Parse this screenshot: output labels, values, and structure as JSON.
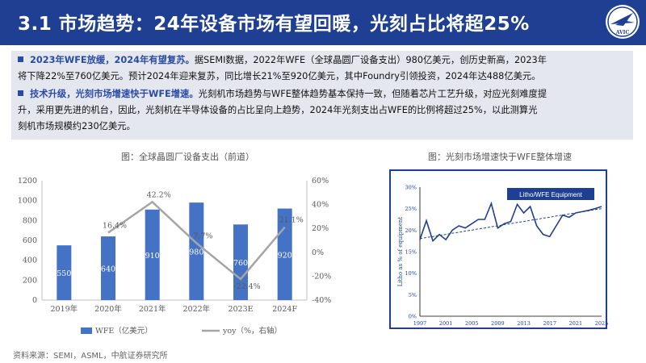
{
  "header": {
    "title": "3.1 市场趋势：24年设备市场有望回暖，光刻占比将超25%",
    "logo_text": "AVIC"
  },
  "bullets": [
    {
      "highlight": "2023年WFE放缓，2024年有望复苏。",
      "line1": "据SEMI数据，2022年WFE（全球晶圆厂设备支出）980亿美元，创历史新高，2023年",
      "line2": "将下降22%至760亿美元。预计2024年迎来复苏，同比增长21%至920亿美元，其中Foundry引领投资，2024年达488亿美元。"
    },
    {
      "highlight": "技术升级，光刻市场增速快于WFE增速。",
      "line1": "光刻机市场趋势与WFE整体趋势基本保持一致，但随着芯片工艺升级，对应光刻难度提",
      "line2": "升，采用更先进的机台，因此，光刻机在半导体设备的占比呈向上趋势，2024年光刻支出占WFE的比例将超过25%，以此测算光",
      "line3": "刻机市场规模约230亿美元。"
    }
  ],
  "left_caption": "图：全球晶圆厂设备支出（前道）",
  "right_caption": "图：光刻市场增速快于WFE整体增速",
  "source": "资料来源：SEMI，ASML，中航证券研究所",
  "chart_data": [
    {
      "type": "bar",
      "categories": [
        "2019年",
        "2020年",
        "2021年",
        "2022年",
        "2023E",
        "2024F"
      ],
      "series": [
        {
          "name": "WFE（亿美元）",
          "type": "bar",
          "axis": "left",
          "values": [
            550,
            640,
            910,
            980,
            760,
            920
          ],
          "color": "#4472c4"
        },
        {
          "name": "yoy（%，右轴）",
          "type": "line",
          "axis": "right",
          "values": [
            null,
            16.4,
            42.2,
            7.7,
            -22.4,
            21.1
          ],
          "color": "#a5a5a5"
        }
      ],
      "data_labels": [
        "550",
        "640",
        "910",
        "980",
        "760",
        "920"
      ],
      "yoy_labels": [
        "",
        "16.4%",
        "42.2%",
        "7.7%",
        "-22.4%",
        "21.1%"
      ],
      "left_ticks": [
        "0",
        "200",
        "400",
        "600",
        "800",
        "1000",
        "1200"
      ],
      "right_ticks": [
        "-40%",
        "-20%",
        "0%",
        "20%",
        "40%",
        "60%"
      ],
      "ylim": [
        0,
        1200
      ],
      "y2lim": [
        -40,
        60
      ],
      "legend_position": "bottom"
    },
    {
      "type": "line",
      "x": [
        1997,
        1998,
        1999,
        2000,
        2001,
        2002,
        2003,
        2004,
        2005,
        2006,
        2007,
        2008,
        2009,
        2010,
        2011,
        2012,
        2013,
        2014,
        2015,
        2016,
        2017,
        2018,
        2019,
        2020,
        2021,
        2022,
        2023,
        2024,
        2025
      ],
      "series": [
        {
          "name": "Litho/WFE Equipment",
          "values": [
            17.8,
            22.2,
            17.5,
            19.0,
            17.8,
            20.0,
            21.0,
            20.5,
            21.5,
            22.5,
            22.5,
            26.2,
            20.5,
            21.5,
            22.0,
            26.0,
            24.0,
            25.5,
            21.0,
            19.0,
            18.5,
            21.0,
            23.5,
            23.0,
            24.0,
            24.3,
            24.6,
            25.0,
            25.5
          ],
          "color": "#1f3f93"
        },
        {
          "name": "trend",
          "values": [
            18.0,
            18.3,
            18.5,
            18.8,
            19.0,
            19.3,
            19.5,
            19.8,
            20.0,
            20.3,
            20.5,
            20.8,
            21.0,
            21.3,
            21.5,
            21.8,
            22.0,
            22.3,
            22.5,
            22.8,
            23.0,
            23.3,
            23.5,
            23.8,
            24.0,
            24.3,
            24.5,
            24.8,
            25.0
          ],
          "color": "#1f3f93",
          "dashed": true
        }
      ],
      "x_ticks": [
        "1997",
        "2001",
        "2005",
        "2009",
        "2013",
        "2017",
        "2021",
        "2025"
      ],
      "y_ticks": [
        "0%",
        "5%",
        "10%",
        "15%",
        "20%",
        "25%",
        "30%"
      ],
      "ylabel": "Litho as % of equipment",
      "ylim": [
        0,
        30
      ],
      "xlim": [
        1997,
        2025
      ]
    }
  ]
}
